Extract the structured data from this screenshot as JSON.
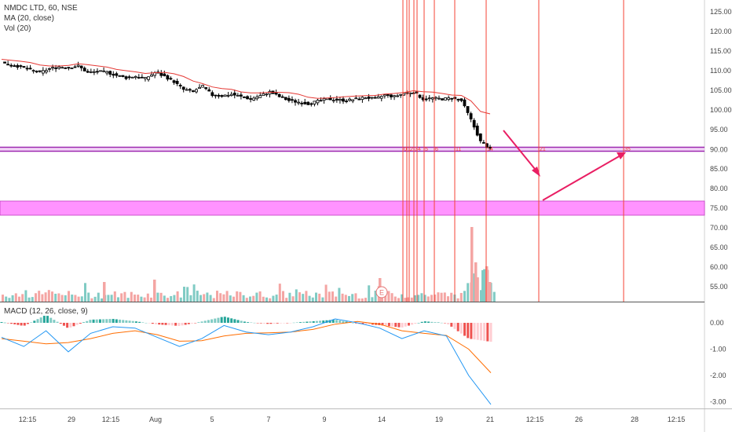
{
  "header": {
    "symbol_line": "NMDC LTD, 60, NSE",
    "ma_line": "MA (20, close)",
    "vol_line": "Vol (20)",
    "macd_line": "MACD (12, 26, close, 9)"
  },
  "colors": {
    "up": "#26a69a",
    "down": "#ef5350",
    "candle": "#000000",
    "ma": "#e53935",
    "macd": "#2196f3",
    "signal": "#ff6d00",
    "zone": "#ff80ff",
    "level_line": "#9c27b0",
    "vline": "#f44336",
    "arrow": "#e91e63"
  },
  "chart_data": [
    {
      "type": "candlestick",
      "title": "NMDC LTD, 60, NSE",
      "y_axis": {
        "range": [
          50,
          127.5
        ],
        "ticks": [
          "125.00",
          "120.00",
          "115.00",
          "110.00",
          "105.00",
          "100.00",
          "95.00",
          "90.00",
          "85.00",
          "80.00",
          "75.00",
          "70.00",
          "65.00",
          "60.00",
          "55.00"
        ]
      },
      "x_axis": {
        "ticks": [
          "12:15",
          "29",
          "12:15",
          "Aug",
          "5",
          "7",
          "9",
          "14",
          "19",
          "21",
          "12:15",
          "26",
          "28",
          "12:15"
        ]
      },
      "close_path": [
        112.0,
        111.5,
        111.0,
        110.2,
        109.5,
        110.5,
        111.0,
        110.8,
        111.2,
        109.5,
        109.8,
        109.6,
        108.8,
        108.2,
        108.6,
        108.0,
        109.5,
        108.6,
        107.2,
        105.2,
        104.8,
        106.0,
        103.8,
        103.6,
        104.0,
        103.4,
        102.8,
        103.6,
        104.6,
        103.4,
        102.4,
        102.0,
        101.6,
        102.2,
        102.8,
        102.6,
        102.4,
        102.8,
        103.2,
        102.8,
        103.8,
        103.4,
        104.2,
        104.6,
        102.8,
        103.0,
        102.8,
        103.0,
        102.4,
        97.5,
        92.0,
        90.0
      ],
      "horizontal_levels": [
        89.9
      ],
      "zone": [
        73.2,
        76.8
      ],
      "vertical_line_labels": [
        "0",
        "1",
        "2",
        "3",
        "4",
        "5",
        "6",
        "11",
        "14",
        "21",
        "35"
      ],
      "ma": {
        "name": "MA (20, close)"
      }
    },
    {
      "type": "bar",
      "title": "Vol (20)",
      "badge": "E"
    },
    {
      "type": "line",
      "title": "MACD (12, 26, close, 9)",
      "y_axis": {
        "range": [
          -3.2,
          0.3
        ],
        "ticks": [
          "0.00",
          "-1.00",
          "-2.00",
          "-3.00"
        ]
      },
      "macd": [
        -0.55,
        -0.9,
        -0.3,
        -1.1,
        -0.4,
        -0.15,
        -0.2,
        -0.55,
        -0.9,
        -0.6,
        -0.1,
        -0.35,
        -0.45,
        -0.35,
        -0.15,
        0.15,
        0.0,
        -0.2,
        -0.6,
        -0.3,
        -0.5,
        -2.0,
        -3.1
      ],
      "signal": [
        -0.6,
        -0.7,
        -0.8,
        -0.75,
        -0.6,
        -0.4,
        -0.3,
        -0.45,
        -0.7,
        -0.68,
        -0.5,
        -0.4,
        -0.38,
        -0.35,
        -0.25,
        -0.05,
        0.05,
        -0.05,
        -0.3,
        -0.4,
        -0.48,
        -1.0,
        -1.9
      ]
    }
  ]
}
